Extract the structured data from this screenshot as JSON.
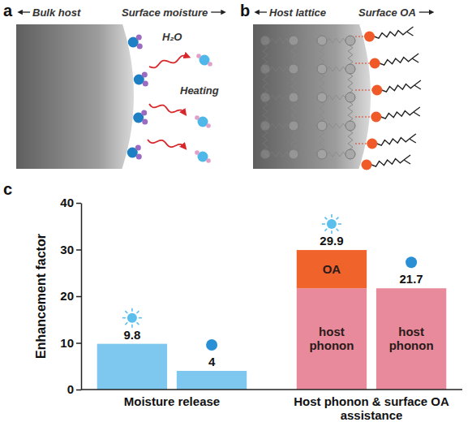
{
  "diagrams": [
    {
      "letter": "a",
      "left_label": "Bulk host",
      "right_label": "Surface moisture",
      "molecule_label": "H₂O",
      "process_label": "Heating"
    },
    {
      "letter": "b",
      "left_label": "Host lattice",
      "right_label": "Surface OA"
    }
  ],
  "chart_data": {
    "type": "bar",
    "panel_label": "c",
    "y_label": "Enhancement factor",
    "categories": [
      "Moisture release",
      null,
      "Host phonon & surface OA assistance",
      null
    ],
    "series": [
      {
        "color": "#7ec8ef",
        "values": [
          9.8,
          4,
          null,
          null
        ]
      },
      {
        "name": "host phonon",
        "color": "#e88a9b",
        "values": [
          null,
          null,
          21.7,
          21.7
        ]
      },
      {
        "name": "OA",
        "color": "#f0642c",
        "values": [
          null,
          null,
          8.2,
          null
        ]
      }
    ],
    "totals": [
      9.8,
      4,
      29.9,
      21.7
    ],
    "stacked": true,
    "data_labels": true,
    "ylim": [
      0,
      40
    ],
    "yticks": [
      0,
      10,
      20,
      30,
      40
    ]
  }
}
